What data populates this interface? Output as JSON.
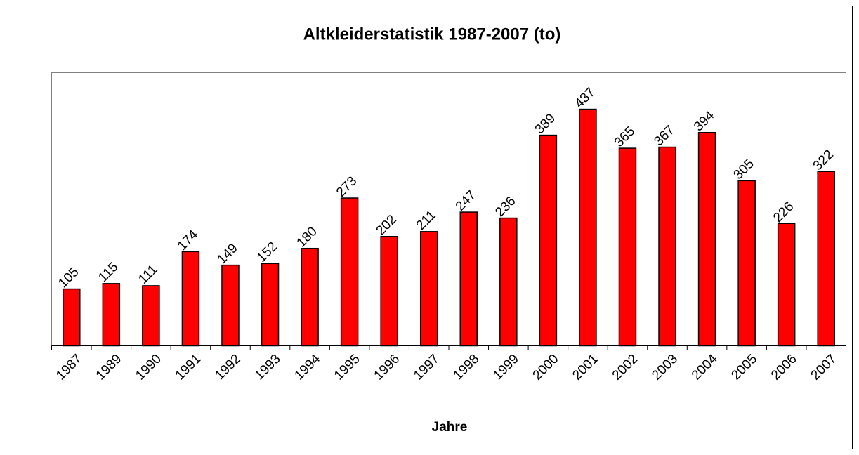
{
  "chart_data": {
    "type": "bar",
    "title": "Altkleiderstatistik 1987-2007 (to)",
    "x_label": "Jahre",
    "categories": [
      "1987",
      "1989",
      "1990",
      "1991",
      "1992",
      "1993",
      "1994",
      "1995",
      "1996",
      "1997",
      "1998",
      "1999",
      "2000",
      "2001",
      "2002",
      "2003",
      "2004",
      "2005",
      "2006",
      "2007"
    ],
    "values": [
      105,
      115,
      111,
      174,
      149,
      152,
      180,
      273,
      202,
      211,
      247,
      236,
      389,
      437,
      365,
      367,
      394,
      305,
      226,
      322
    ],
    "color": "#ff0000",
    "ylim": [
      0,
      500
    ],
    "grid": false
  }
}
